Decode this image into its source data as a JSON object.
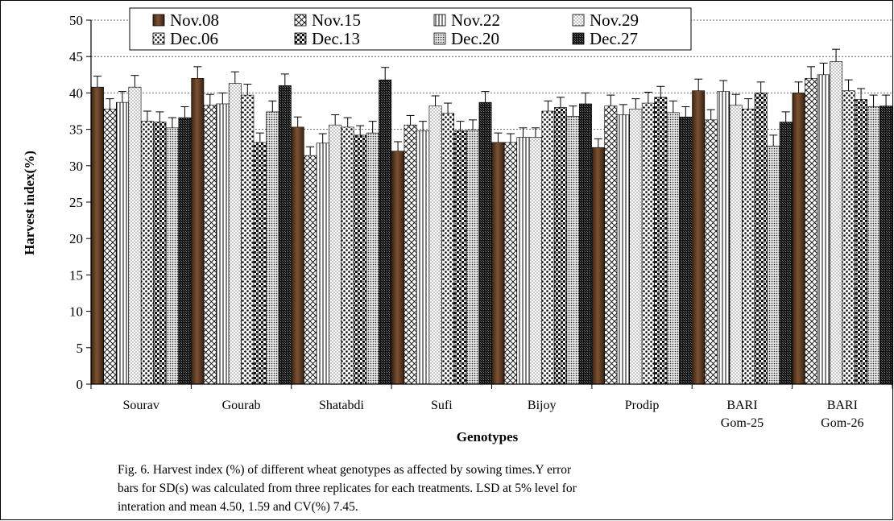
{
  "chart_data": {
    "type": "bar",
    "ylabel": "Harvest index(%)",
    "xlabel": "Genotypes",
    "ylim": [
      0,
      50
    ],
    "yticks": [
      "0",
      "5",
      "10",
      "15",
      "20",
      "25",
      "30",
      "35",
      "40",
      "45",
      "50"
    ],
    "ytick_values": [
      0,
      5,
      10,
      15,
      20,
      25,
      30,
      35,
      40,
      45,
      50
    ],
    "grid": "horizontal-dashed",
    "legend_position": "top",
    "categories": [
      "Sourav",
      "Gourab",
      "Shatabdi",
      "Sufi",
      "Bijoy",
      "Prodip",
      "BARI Gom-25",
      "BARI Gom-26"
    ],
    "category_lines": [
      [
        "Sourav"
      ],
      [
        "Gourab"
      ],
      [
        "Shatabdi"
      ],
      [
        "Sufi"
      ],
      [
        "Bijoy"
      ],
      [
        "Prodip"
      ],
      [
        "BARI",
        "Gom-25"
      ],
      [
        "BARI",
        "Gom-26"
      ]
    ],
    "series": [
      {
        "name": "Nov.08",
        "pattern": "brown",
        "values": [
          40.8,
          42.0,
          35.3,
          32.0,
          33.2,
          32.5,
          40.3,
          40.0
        ],
        "errors": [
          1.5,
          1.6,
          1.4,
          1.3,
          1.3,
          1.2,
          1.6,
          1.5
        ]
      },
      {
        "name": "Nov.15",
        "pattern": "diag",
        "values": [
          37.8,
          38.3,
          31.4,
          35.6,
          33.2,
          38.2,
          36.3,
          42.0
        ],
        "errors": [
          1.4,
          1.5,
          1.2,
          1.3,
          1.2,
          1.5,
          1.4,
          1.6
        ]
      },
      {
        "name": "Nov.22",
        "pattern": "vlines",
        "values": [
          38.7,
          38.5,
          33.1,
          34.8,
          33.9,
          37.0,
          40.2,
          42.5
        ],
        "errors": [
          1.5,
          1.5,
          1.3,
          1.3,
          1.3,
          1.4,
          1.5,
          1.6
        ]
      },
      {
        "name": "Nov.29",
        "pattern": "dots-light",
        "values": [
          40.8,
          41.3,
          35.6,
          38.2,
          33.9,
          37.8,
          38.3,
          44.3
        ],
        "errors": [
          1.6,
          1.6,
          1.4,
          1.4,
          1.3,
          1.4,
          1.5,
          1.7
        ]
      },
      {
        "name": "Dec.06",
        "pattern": "dots-dark",
        "values": [
          36.1,
          39.7,
          35.3,
          37.2,
          37.5,
          38.6,
          37.8,
          40.3
        ],
        "errors": [
          1.4,
          1.5,
          1.3,
          1.4,
          1.4,
          1.5,
          1.4,
          1.5
        ]
      },
      {
        "name": "Dec.13",
        "pattern": "checker",
        "values": [
          36.0,
          33.2,
          34.2,
          34.8,
          38.0,
          39.4,
          40.0,
          39.1
        ],
        "errors": [
          1.4,
          1.3,
          1.3,
          1.3,
          1.4,
          1.5,
          1.5,
          1.5
        ]
      },
      {
        "name": "Dec.20",
        "pattern": "fine-dots",
        "values": [
          35.2,
          37.4,
          34.5,
          34.9,
          36.8,
          37.3,
          32.7,
          38.1
        ],
        "errors": [
          1.4,
          1.5,
          1.6,
          1.4,
          1.4,
          1.6,
          1.5,
          1.6
        ]
      },
      {
        "name": "Dec.27",
        "pattern": "dense",
        "values": [
          36.6,
          41.0,
          41.8,
          38.7,
          38.5,
          36.7,
          36.0,
          38.2
        ],
        "errors": [
          1.5,
          1.6,
          1.7,
          1.5,
          1.5,
          1.4,
          1.4,
          1.5
        ]
      }
    ],
    "caption": [
      "Fig. 6. Harvest index (%) of different wheat genotypes as affected by sowing times.Y error",
      "bars for SD(s) was calculated from three replicates for each treatments. LSD at 5% level for",
      "interation and mean 4.50, 1.59 and CV(%) 7.45."
    ]
  }
}
